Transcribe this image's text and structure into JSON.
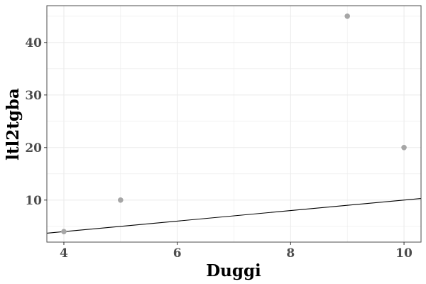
{
  "chart_data": {
    "type": "scatter",
    "xlabel": "Duggi",
    "ylabel": "ltl2tgba",
    "xlim": [
      3.7,
      10.3
    ],
    "ylim": [
      2,
      47
    ],
    "x_ticks": [
      4,
      6,
      8,
      10
    ],
    "y_ticks": [
      10,
      20,
      30,
      40
    ],
    "grid": true,
    "points": [
      {
        "x": 4,
        "y": 4
      },
      {
        "x": 5,
        "y": 10
      },
      {
        "x": 9,
        "y": 45
      },
      {
        "x": 10,
        "y": 20
      }
    ],
    "reference_line": {
      "x": [
        3.7,
        10.3
      ],
      "y": [
        3.7,
        10.3
      ]
    },
    "colors": {
      "point": "#a6a6a6",
      "line": "#000000",
      "panel_border": "#4d4d4d",
      "grid": "#ebebeb"
    }
  }
}
